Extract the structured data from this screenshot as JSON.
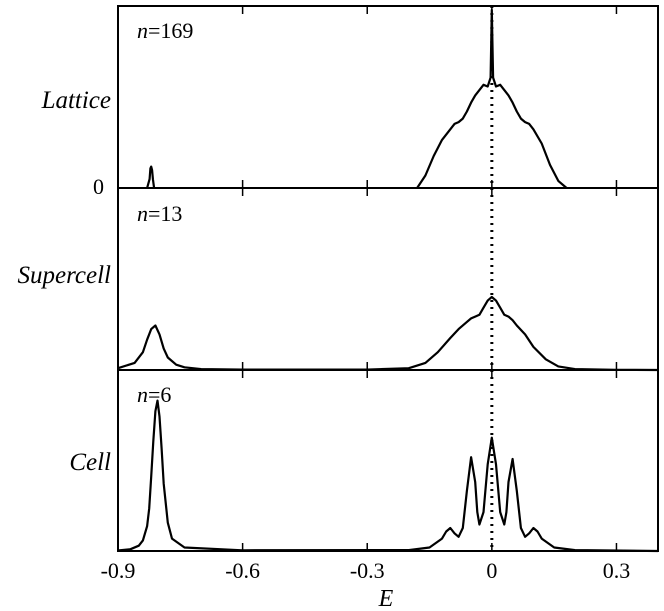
{
  "chart_data": {
    "type": "line",
    "xlabel": "E",
    "xlim": [
      -0.9,
      0.4
    ],
    "x_ticks": [
      -0.9,
      -0.6,
      -0.3,
      0,
      0.3
    ],
    "x_tick_labels": [
      "-0.9",
      "-0.6",
      "-0.3",
      "0",
      "0.3"
    ],
    "reference_line": {
      "x": 0,
      "style": "dotted"
    },
    "panels": [
      {
        "row_label": "Lattice",
        "n_label_prefix": "n",
        "n_label_value": "=169",
        "y_zero_label": "0",
        "series": {
          "name": "Lattice DOS",
          "x": [
            -0.83,
            -0.824,
            -0.822,
            -0.82,
            -0.818,
            -0.816,
            -0.813,
            -0.18,
            -0.16,
            -0.14,
            -0.12,
            -0.1,
            -0.09,
            -0.08,
            -0.07,
            -0.06,
            -0.05,
            -0.04,
            -0.03,
            -0.02,
            -0.01,
            -0.003,
            0,
            0.003,
            0.01,
            0.02,
            0.03,
            0.04,
            0.05,
            0.06,
            0.07,
            0.08,
            0.09,
            0.1,
            0.12,
            0.14,
            0.16,
            0.18
          ],
          "y": [
            0,
            0.05,
            0.11,
            0.12,
            0.1,
            0.05,
            0,
            0,
            0.07,
            0.18,
            0.27,
            0.33,
            0.36,
            0.37,
            0.39,
            0.43,
            0.48,
            0.52,
            0.55,
            0.58,
            0.57,
            0.62,
            1.0,
            0.62,
            0.57,
            0.58,
            0.55,
            0.52,
            0.48,
            0.43,
            0.39,
            0.37,
            0.36,
            0.33,
            0.25,
            0.13,
            0.04,
            0
          ]
        }
      },
      {
        "row_label": "Supercell",
        "n_label_prefix": "n",
        "n_label_value": "=13",
        "series": {
          "name": "Supercell DOS",
          "x": [
            -0.9,
            -0.86,
            -0.84,
            -0.83,
            -0.82,
            -0.81,
            -0.8,
            -0.79,
            -0.78,
            -0.76,
            -0.74,
            -0.7,
            -0.6,
            -0.3,
            -0.2,
            -0.16,
            -0.13,
            -0.1,
            -0.08,
            -0.06,
            -0.05,
            -0.04,
            -0.03,
            -0.02,
            -0.01,
            0,
            0.01,
            0.02,
            0.03,
            0.04,
            0.05,
            0.06,
            0.08,
            0.1,
            0.13,
            0.16,
            0.2,
            0.3,
            0.4
          ],
          "y": [
            0.01,
            0.04,
            0.1,
            0.17,
            0.23,
            0.25,
            0.2,
            0.12,
            0.07,
            0.03,
            0.015,
            0.005,
            0.002,
            0.002,
            0.01,
            0.04,
            0.1,
            0.18,
            0.23,
            0.27,
            0.29,
            0.3,
            0.31,
            0.35,
            0.39,
            0.41,
            0.39,
            0.35,
            0.31,
            0.3,
            0.28,
            0.25,
            0.2,
            0.13,
            0.06,
            0.02,
            0.005,
            0.001,
            0
          ]
        }
      },
      {
        "row_label": "Cell",
        "n_label_prefix": "n",
        "n_label_value": "=6",
        "series": {
          "name": "Cell DOS",
          "x": [
            -0.9,
            -0.87,
            -0.85,
            -0.84,
            -0.83,
            -0.825,
            -0.82,
            -0.815,
            -0.81,
            -0.805,
            -0.8,
            -0.795,
            -0.79,
            -0.78,
            -0.77,
            -0.74,
            -0.6,
            -0.2,
            -0.15,
            -0.12,
            -0.11,
            -0.1,
            -0.09,
            -0.08,
            -0.07,
            -0.06,
            -0.05,
            -0.04,
            -0.035,
            -0.03,
            -0.02,
            -0.01,
            0,
            0.01,
            0.02,
            0.03,
            0.035,
            0.04,
            0.05,
            0.06,
            0.07,
            0.08,
            0.09,
            0.1,
            0.11,
            0.12,
            0.15,
            0.2,
            0.4
          ],
          "y": [
            0.003,
            0.01,
            0.03,
            0.06,
            0.14,
            0.24,
            0.42,
            0.62,
            0.79,
            0.85,
            0.76,
            0.58,
            0.38,
            0.16,
            0.07,
            0.02,
            0.004,
            0.005,
            0.02,
            0.07,
            0.11,
            0.13,
            0.1,
            0.08,
            0.13,
            0.34,
            0.53,
            0.39,
            0.22,
            0.15,
            0.22,
            0.49,
            0.64,
            0.49,
            0.22,
            0.15,
            0.22,
            0.39,
            0.52,
            0.34,
            0.13,
            0.08,
            0.1,
            0.13,
            0.11,
            0.07,
            0.02,
            0.005,
            0
          ]
        }
      }
    ]
  }
}
